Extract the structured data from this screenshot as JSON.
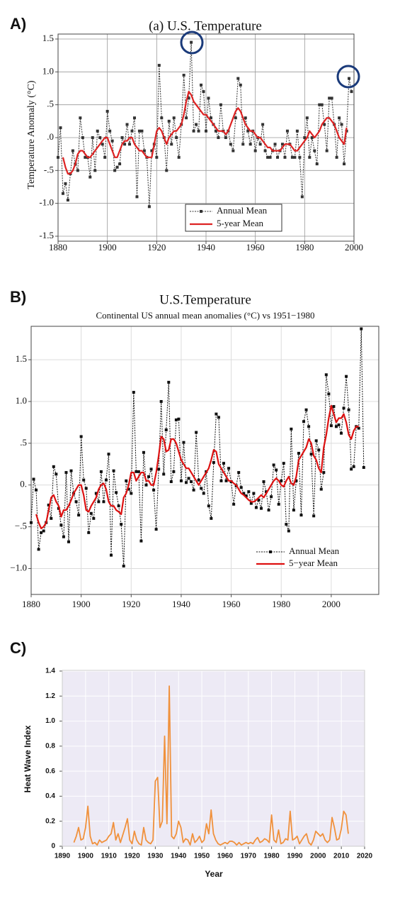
{
  "chart_data": [
    {
      "type": "line",
      "label": "A)",
      "title": "(a) U.S. Temperature",
      "ylabel": "Temperature Anomaly (°C)",
      "xlim": [
        1880,
        2000
      ],
      "ylim": [
        -1.5,
        1.5
      ],
      "xticks": [
        1880,
        1900,
        1920,
        1940,
        1960,
        1980,
        2000
      ],
      "yticks": [
        1.5,
        {
          "value": 1,
          "label": "1.0"
        },
        {
          "value": 0.5,
          "label": ".5"
        },
        {
          "value": 0,
          "label": ".0"
        },
        {
          "value": -0.5,
          "label": "-.5"
        },
        {
          "value": -1,
          "label": "-1.0"
        },
        -1.5
      ],
      "grid": true,
      "x": [
        1880,
        1881,
        1882,
        1883,
        1884,
        1885,
        1886,
        1887,
        1888,
        1889,
        1890,
        1891,
        1892,
        1893,
        1894,
        1895,
        1896,
        1897,
        1898,
        1899,
        1900,
        1901,
        1902,
        1903,
        1904,
        1905,
        1906,
        1907,
        1908,
        1909,
        1910,
        1911,
        1912,
        1913,
        1914,
        1915,
        1916,
        1917,
        1918,
        1919,
        1920,
        1921,
        1922,
        1923,
        1924,
        1925,
        1926,
        1927,
        1928,
        1929,
        1930,
        1931,
        1932,
        1933,
        1934,
        1935,
        1936,
        1937,
        1938,
        1939,
        1940,
        1941,
        1942,
        1943,
        1944,
        1945,
        1946,
        1947,
        1948,
        1949,
        1950,
        1951,
        1952,
        1953,
        1954,
        1955,
        1956,
        1957,
        1958,
        1959,
        1960,
        1961,
        1962,
        1963,
        1964,
        1965,
        1966,
        1967,
        1968,
        1969,
        1970,
        1971,
        1972,
        1973,
        1974,
        1975,
        1976,
        1977,
        1978,
        1979,
        1980,
        1981,
        1982,
        1983,
        1984,
        1985,
        1986,
        1987,
        1988,
        1989,
        1990,
        1991,
        1992,
        1993,
        1994,
        1995,
        1996,
        1997,
        1998,
        1999
      ],
      "series": [
        {
          "name": "Annual Mean",
          "color": "#333333",
          "line_style": "dotted",
          "marker": "square",
          "values": [
            -0.3,
            0.15,
            -0.85,
            -0.7,
            -0.95,
            -0.55,
            -0.2,
            -0.4,
            -0.5,
            0.3,
            0.0,
            -0.3,
            -0.3,
            -0.6,
            0.0,
            -0.5,
            0.1,
            0.0,
            -0.1,
            -0.3,
            0.4,
            0.1,
            -0.05,
            -0.5,
            -0.45,
            -0.4,
            0.0,
            -0.1,
            0.2,
            -0.1,
            0.1,
            0.3,
            -0.9,
            0.1,
            0.1,
            -0.2,
            -0.3,
            -1.05,
            -0.2,
            -0.1,
            -0.3,
            1.1,
            0.3,
            0.0,
            -0.5,
            0.25,
            -0.1,
            0.3,
            0.0,
            -0.3,
            0.2,
            0.95,
            0.3,
            0.6,
            1.45,
            0.1,
            0.2,
            0.1,
            0.8,
            0.7,
            0.1,
            0.6,
            0.3,
            0.2,
            0.1,
            0.0,
            0.5,
            0.1,
            0.0,
            0.1,
            -0.1,
            -0.2,
            0.3,
            0.9,
            0.8,
            -0.1,
            0.3,
            0.1,
            -0.1,
            0.1,
            -0.2,
            0.0,
            -0.1,
            0.2,
            -0.2,
            -0.3,
            -0.3,
            -0.2,
            -0.1,
            -0.3,
            -0.2,
            -0.1,
            -0.3,
            0.1,
            -0.1,
            -0.3,
            -0.3,
            0.1,
            -0.3,
            -0.9,
            0.0,
            0.3,
            -0.3,
            0.0,
            -0.2,
            -0.4,
            0.5,
            0.5,
            0.2,
            -0.2,
            0.6,
            0.6,
            0.2,
            -0.3,
            0.3,
            0.2,
            -0.4,
            0.1,
            0.9,
            0.7
          ]
        },
        {
          "name": "5-year Mean",
          "color": "#dd2222",
          "line_style": "solid",
          "values": [
            null,
            null,
            -0.3,
            -0.45,
            -0.55,
            -0.55,
            -0.5,
            -0.4,
            -0.25,
            -0.2,
            -0.2,
            -0.25,
            -0.3,
            -0.3,
            -0.25,
            -0.2,
            -0.15,
            -0.1,
            -0.05,
            0.0,
            0.0,
            -0.1,
            -0.2,
            -0.3,
            -0.3,
            -0.2,
            -0.1,
            -0.05,
            -0.05,
            0.0,
            0.0,
            -0.1,
            -0.15,
            -0.2,
            -0.2,
            -0.25,
            -0.3,
            -0.3,
            -0.3,
            -0.1,
            0.1,
            0.15,
            0.1,
            0.0,
            -0.1,
            0.0,
            0.05,
            0.1,
            0.1,
            0.15,
            0.2,
            0.35,
            0.55,
            0.7,
            0.65,
            0.55,
            0.5,
            0.45,
            0.4,
            0.35,
            0.35,
            0.3,
            0.25,
            0.2,
            0.15,
            0.1,
            0.1,
            0.1,
            0.05,
            0.1,
            0.2,
            0.3,
            0.4,
            0.45,
            0.4,
            0.3,
            0.2,
            0.15,
            0.1,
            0.1,
            0.05,
            0.0,
            0.0,
            -0.05,
            -0.1,
            -0.15,
            -0.15,
            -0.2,
            -0.2,
            -0.2,
            -0.2,
            -0.15,
            -0.1,
            -0.1,
            -0.1,
            -0.15,
            -0.2,
            -0.2,
            -0.15,
            -0.1,
            -0.05,
            0.0,
            0.1,
            0.05,
            0.0,
            0.05,
            0.1,
            0.2,
            0.25,
            0.3,
            0.3,
            0.25,
            0.2,
            0.1,
            0.0,
            -0.05,
            -0.1,
            0.15,
            null,
            null
          ]
        }
      ]
    },
    {
      "type": "line",
      "label": "B)",
      "title": "U.S.Temperature",
      "subtitle": "Continental US annual mean anomalies (°C) vs 1951−1980",
      "xlim": [
        1880,
        2019
      ],
      "ylim": [
        -1.31,
        1.9
      ],
      "xticks": [
        1880,
        1900,
        1920,
        1940,
        1960,
        1980,
        2000
      ],
      "yticks": [
        1.5,
        {
          "value": 1,
          "label": "1.0"
        },
        {
          "value": 0.5,
          "label": ".5"
        },
        {
          "value": 0,
          "label": "0."
        },
        {
          "value": -0.5,
          "label": "−.5"
        },
        {
          "value": -1,
          "label": "−1.0"
        }
      ],
      "grid": true,
      "x": [
        1880,
        1881,
        1882,
        1883,
        1884,
        1885,
        1886,
        1887,
        1888,
        1889,
        1890,
        1891,
        1892,
        1893,
        1894,
        1895,
        1896,
        1897,
        1898,
        1899,
        1900,
        1901,
        1902,
        1903,
        1904,
        1905,
        1906,
        1907,
        1908,
        1909,
        1910,
        1911,
        1912,
        1913,
        1914,
        1915,
        1916,
        1917,
        1918,
        1919,
        1920,
        1921,
        1922,
        1923,
        1924,
        1925,
        1926,
        1927,
        1928,
        1929,
        1930,
        1931,
        1932,
        1933,
        1934,
        1935,
        1936,
        1937,
        1938,
        1939,
        1940,
        1941,
        1942,
        1943,
        1944,
        1945,
        1946,
        1947,
        1948,
        1949,
        1950,
        1951,
        1952,
        1953,
        1954,
        1955,
        1956,
        1957,
        1958,
        1959,
        1960,
        1961,
        1962,
        1963,
        1964,
        1965,
        1966,
        1967,
        1968,
        1969,
        1970,
        1971,
        1972,
        1973,
        1974,
        1975,
        1976,
        1977,
        1978,
        1979,
        1980,
        1981,
        1982,
        1983,
        1984,
        1985,
        1986,
        1987,
        1988,
        1989,
        1990,
        1991,
        1992,
        1993,
        1994,
        1995,
        1996,
        1997,
        1998,
        1999,
        2000,
        2001,
        2002,
        2003,
        2004,
        2005,
        2006,
        2007,
        2008,
        2009,
        2010,
        2011,
        2012,
        2013
      ],
      "series": [
        {
          "name": "Annual Mean",
          "color": "#111111",
          "line_style": "dotted",
          "marker": "square",
          "values": [
            -0.45,
            0.07,
            -0.06,
            -0.77,
            -0.57,
            -0.55,
            -0.45,
            -0.24,
            -0.4,
            0.22,
            0.13,
            -0.28,
            -0.48,
            -0.62,
            0.15,
            -0.68,
            0.17,
            -0.1,
            -0.2,
            -0.36,
            0.58,
            0.06,
            -0.04,
            -0.57,
            -0.34,
            -0.4,
            -0.1,
            -0.2,
            0.16,
            -0.2,
            0.06,
            0.37,
            -0.84,
            0.17,
            -0.09,
            -0.25,
            -0.47,
            -0.97,
            0.05,
            -0.05,
            -0.1,
            1.11,
            0.16,
            0.16,
            -0.67,
            0.39,
            0.0,
            0.1,
            0.19,
            -0.06,
            -0.53,
            0.19,
            1.0,
            0.13,
            0.66,
            1.23,
            0.04,
            0.16,
            0.78,
            0.79,
            0.05,
            0.51,
            0.03,
            0.08,
            0.04,
            -0.06,
            0.63,
            0.06,
            -0.04,
            -0.1,
            0.16,
            -0.25,
            -0.4,
            0.27,
            0.85,
            0.81,
            0.05,
            0.26,
            0.05,
            0.2,
            0.04,
            -0.23,
            -0.01,
            0.15,
            -0.03,
            -0.1,
            -0.13,
            -0.08,
            -0.22,
            -0.1,
            -0.27,
            -0.18,
            -0.28,
            0.04,
            -0.08,
            -0.3,
            -0.14,
            0.24,
            0.18,
            -0.23,
            0.05,
            0.26,
            -0.47,
            -0.55,
            0.67,
            -0.3,
            0.05,
            0.38,
            -0.36,
            0.76,
            0.9,
            0.7,
            0.37,
            -0.37,
            0.53,
            0.42,
            -0.05,
            0.15,
            1.32,
            1.09,
            0.71,
            0.94,
            0.7,
            0.72,
            0.62,
            0.92,
            1.3,
            0.9,
            0.19,
            0.22,
            0.7,
            0.68,
            1.87,
            0.21
          ]
        },
        {
          "name": "5−year Mean",
          "color": "#dd1111",
          "line_style": "solid",
          "values": [
            null,
            null,
            -0.35,
            -0.45,
            -0.52,
            -0.5,
            -0.45,
            -0.3,
            -0.15,
            -0.12,
            -0.2,
            -0.25,
            -0.38,
            -0.3,
            -0.3,
            -0.25,
            -0.18,
            -0.1,
            -0.05,
            0.0,
            0.0,
            -0.12,
            -0.3,
            -0.32,
            -0.25,
            -0.2,
            -0.15,
            -0.05,
            0.0,
            0.02,
            -0.05,
            -0.2,
            -0.25,
            -0.25,
            -0.3,
            -0.32,
            -0.35,
            -0.15,
            -0.1,
            0.0,
            0.15,
            0.15,
            0.05,
            0.1,
            0.15,
            0.15,
            0.05,
            0.05,
            0.0,
            0.0,
            0.15,
            0.35,
            0.58,
            0.55,
            0.4,
            0.42,
            0.55,
            0.55,
            0.5,
            0.4,
            0.3,
            0.25,
            0.2,
            0.2,
            0.15,
            0.1,
            0.05,
            0.0,
            0.05,
            0.1,
            0.15,
            0.2,
            0.3,
            0.42,
            0.4,
            0.25,
            0.2,
            0.15,
            0.1,
            0.05,
            0.05,
            0.02,
            0.0,
            -0.05,
            -0.1,
            -0.12,
            -0.15,
            -0.18,
            -0.2,
            -0.2,
            -0.18,
            -0.15,
            -0.12,
            -0.15,
            -0.1,
            -0.05,
            0.0,
            0.05,
            0.08,
            0.05,
            0.0,
            -0.02,
            0.05,
            0.1,
            0.02,
            0.0,
            0.1,
            0.3,
            0.35,
            0.4,
            0.45,
            0.55,
            0.5,
            0.35,
            0.3,
            0.2,
            0.15,
            0.45,
            0.6,
            0.8,
            0.95,
            0.85,
            0.75,
            0.8,
            0.8,
            0.85,
            0.75,
            0.6,
            0.55,
            0.65,
            0.7,
            0.7,
            null,
            null
          ]
        }
      ]
    },
    {
      "type": "line",
      "label": "C)",
      "ylabel": "Heat Wave Index",
      "xlabel": "Year",
      "xlim": [
        1890,
        2020
      ],
      "ylim": [
        0,
        1.4
      ],
      "xticks": [
        1890,
        1900,
        1910,
        1920,
        1930,
        1940,
        1950,
        1960,
        1970,
        1980,
        1990,
        2000,
        2010,
        2020
      ],
      "yticks": [
        0,
        0.2,
        0.4,
        0.6,
        0.8,
        {
          "value": 1,
          "label": "1.0"
        },
        1.2,
        1.4
      ],
      "grid": true,
      "background": "#edeaf5",
      "x": [
        1895,
        1896,
        1897,
        1898,
        1899,
        1900,
        1901,
        1902,
        1903,
        1904,
        1905,
        1906,
        1907,
        1908,
        1909,
        1910,
        1911,
        1912,
        1913,
        1914,
        1915,
        1916,
        1917,
        1918,
        1919,
        1920,
        1921,
        1922,
        1923,
        1924,
        1925,
        1926,
        1927,
        1928,
        1929,
        1930,
        1931,
        1932,
        1933,
        1934,
        1935,
        1936,
        1937,
        1938,
        1939,
        1940,
        1941,
        1942,
        1943,
        1944,
        1945,
        1946,
        1947,
        1948,
        1949,
        1950,
        1951,
        1952,
        1953,
        1954,
        1955,
        1956,
        1957,
        1958,
        1959,
        1960,
        1961,
        1962,
        1963,
        1964,
        1965,
        1966,
        1967,
        1968,
        1969,
        1970,
        1971,
        1972,
        1973,
        1974,
        1975,
        1976,
        1977,
        1978,
        1979,
        1980,
        1981,
        1982,
        1983,
        1984,
        1985,
        1986,
        1987,
        1988,
        1989,
        1990,
        1991,
        1992,
        1993,
        1994,
        1995,
        1996,
        1997,
        1998,
        1999,
        2000,
        2001,
        2002,
        2003,
        2004,
        2005,
        2006,
        2007,
        2008,
        2009,
        2010,
        2011,
        2012,
        2013
      ],
      "series": [
        {
          "color": "#f0913c",
          "line_style": "solid",
          "values": [
            0.03,
            0.08,
            0.15,
            0.05,
            0.06,
            0.15,
            0.32,
            0.08,
            0.02,
            0.03,
            0.01,
            0.05,
            0.03,
            0.04,
            0.05,
            0.08,
            0.1,
            0.19,
            0.05,
            0.1,
            0.03,
            0.09,
            0.15,
            0.22,
            0.05,
            0.02,
            0.12,
            0.05,
            0.02,
            0.01,
            0.15,
            0.05,
            0.03,
            0.02,
            0.05,
            0.52,
            0.55,
            0.15,
            0.2,
            0.88,
            0.18,
            1.28,
            0.08,
            0.06,
            0.1,
            0.2,
            0.15,
            0.03,
            0.06,
            0.05,
            0.01,
            0.1,
            0.03,
            0.05,
            0.08,
            0.03,
            0.05,
            0.18,
            0.1,
            0.29,
            0.1,
            0.05,
            0.02,
            0.01,
            0.02,
            0.03,
            0.02,
            0.04,
            0.04,
            0.03,
            0.01,
            0.03,
            0.01,
            0.02,
            0.03,
            0.02,
            0.03,
            0.02,
            0.05,
            0.07,
            0.03,
            0.04,
            0.06,
            0.05,
            0.03,
            0.25,
            0.05,
            0.03,
            0.13,
            0.02,
            0.03,
            0.06,
            0.05,
            0.28,
            0.05,
            0.06,
            0.08,
            0.02,
            0.05,
            0.08,
            0.1,
            0.03,
            0.01,
            0.05,
            0.12,
            0.1,
            0.08,
            0.1,
            0.05,
            0.03,
            0.05,
            0.23,
            0.15,
            0.05,
            0.06,
            0.14,
            0.28,
            0.25,
            0.1
          ]
        }
      ]
    }
  ]
}
